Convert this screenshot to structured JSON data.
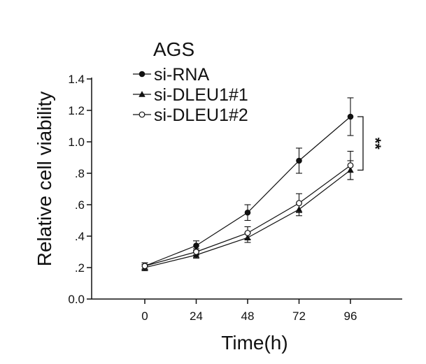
{
  "chart_data": {
    "type": "line",
    "title": "AGS",
    "xlabel": "Time(h)",
    "ylabel": "Relative cell viability",
    "x": [
      0,
      24,
      48,
      72,
      96
    ],
    "x_tick_labels": [
      "0",
      "24",
      "48",
      "72",
      "96"
    ],
    "y_ticks": [
      0.0,
      0.2,
      0.4,
      0.6,
      0.8,
      1.0,
      1.2,
      1.4
    ],
    "y_tick_labels": [
      "0.0",
      ".2",
      ".4",
      ".6",
      ".8",
      "1.0",
      "1.2",
      "1.4"
    ],
    "ylim": [
      0.0,
      1.4
    ],
    "grid": false,
    "legend_position": "top-left",
    "series": [
      {
        "name": "si-RNA",
        "marker": "filled-circle",
        "values": [
          0.21,
          0.34,
          0.55,
          0.88,
          1.16
        ],
        "errors": [
          0.02,
          0.03,
          0.05,
          0.08,
          0.12
        ]
      },
      {
        "name": "si-DLEU1#1",
        "marker": "filled-triangle",
        "values": [
          0.2,
          0.28,
          0.39,
          0.57,
          0.82
        ],
        "errors": [
          0.02,
          0.02,
          0.03,
          0.04,
          0.06
        ]
      },
      {
        "name": "si-DLEU1#2",
        "marker": "open-circle",
        "values": [
          0.21,
          0.3,
          0.42,
          0.61,
          0.85
        ],
        "errors": [
          0.02,
          0.02,
          0.04,
          0.06,
          0.09
        ]
      }
    ],
    "annotations": [
      {
        "text": "**"
      }
    ]
  }
}
